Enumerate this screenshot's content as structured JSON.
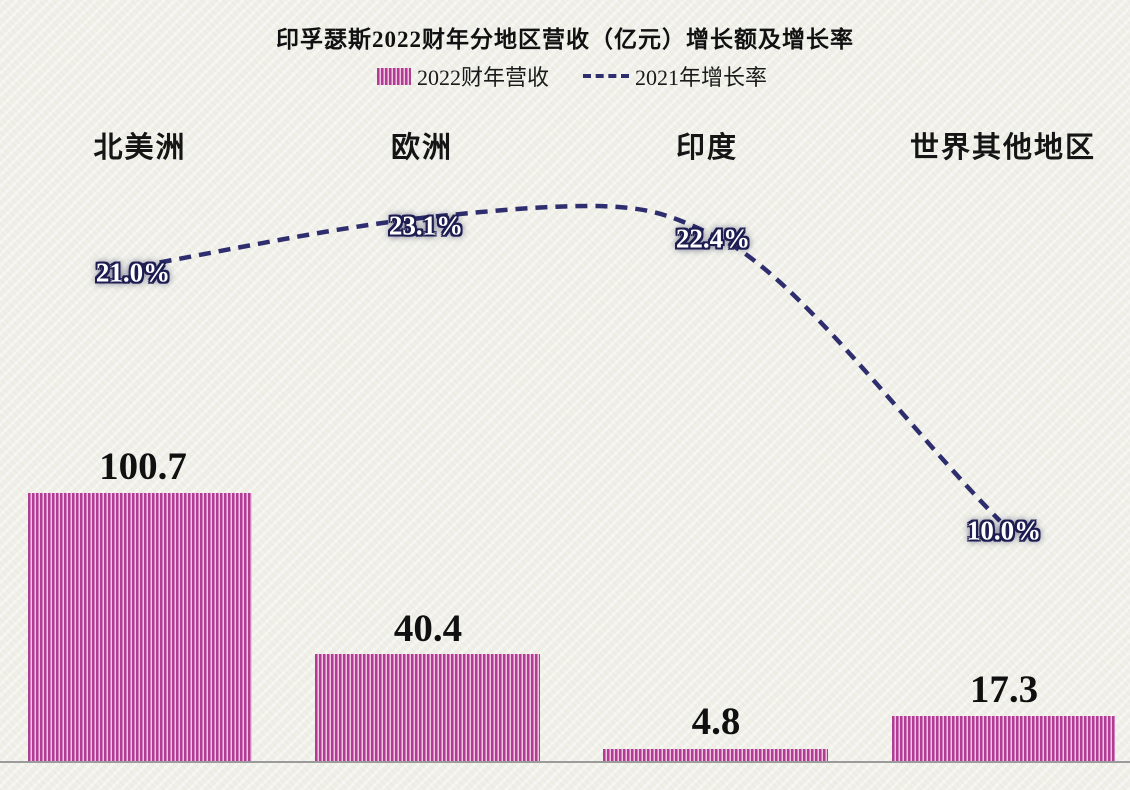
{
  "chart_data": {
    "type": "bar+line",
    "title": "印孚瑟斯2022财年分地区营收（亿元）增长额及增长率",
    "categories": [
      "北美洲",
      "欧洲",
      "印度",
      "世界其他地区"
    ],
    "series": [
      {
        "name": "2022财年营收",
        "type": "bar",
        "values": [
          100.7,
          40.4,
          4.8,
          17.3
        ],
        "labels": [
          "100.7",
          "40.4",
          "4.8",
          "17.3"
        ],
        "color": "#b23c94",
        "fill_pattern": "vertical-stripes",
        "stripe_light_color": "#eec6e2"
      },
      {
        "name": "2021年增长率",
        "type": "line",
        "values": [
          21.0,
          23.1,
          22.4,
          10.0
        ],
        "labels": [
          "21.0%",
          "23.1%",
          "22.4%",
          "10.0%"
        ],
        "color": "#2e2e6e",
        "line_style": "dashed",
        "smooth": true
      }
    ],
    "legend_position": "top",
    "grid": false,
    "axes_visible": false,
    "background_color": "#f0f0e9"
  }
}
